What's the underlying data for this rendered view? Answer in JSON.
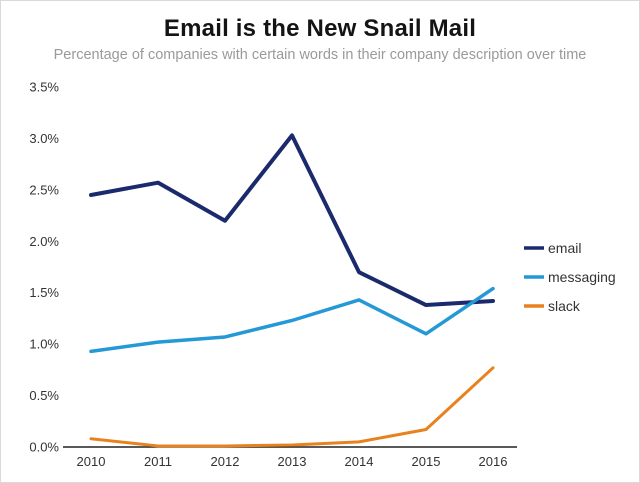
{
  "header": {
    "title": "Email is the New Snail Mail",
    "subtitle": "Percentage of companies with certain words in their company description over time"
  },
  "chart_data": {
    "type": "line",
    "title": "Email is the New Snail Mail",
    "subtitle": "Percentage of companies with certain words in their company description over time",
    "categories": [
      "2010",
      "2011",
      "2012",
      "2013",
      "2014",
      "2015",
      "2016"
    ],
    "series": [
      {
        "name": "email",
        "color": "#1a2a6c",
        "stroke_width": 4,
        "values": [
          2.45,
          2.57,
          2.2,
          3.03,
          1.7,
          1.38,
          1.42
        ]
      },
      {
        "name": "messaging",
        "color": "#2499d6",
        "stroke_width": 3.5,
        "values": [
          0.93,
          1.02,
          1.07,
          1.23,
          1.43,
          1.1,
          1.54
        ]
      },
      {
        "name": "slack",
        "color": "#e8821e",
        "stroke_width": 3,
        "values": [
          0.08,
          0.01,
          0.01,
          0.02,
          0.05,
          0.17,
          0.77
        ]
      }
    ],
    "xlabel": "",
    "ylabel": "",
    "ylim": [
      0,
      3.5
    ],
    "yticks": [
      {
        "v": 0.0,
        "label": "0.0%"
      },
      {
        "v": 0.5,
        "label": "0.5%"
      },
      {
        "v": 1.0,
        "label": "1.0%"
      },
      {
        "v": 1.5,
        "label": "1.5%"
      },
      {
        "v": 2.0,
        "label": "2.0%"
      },
      {
        "v": 2.5,
        "label": "2.5%"
      },
      {
        "v": 3.0,
        "label": "3.0%"
      },
      {
        "v": 3.5,
        "label": "3.5%"
      }
    ],
    "grid": false,
    "legend_position": "right",
    "axis_color": "#222222",
    "tick_label_color": "#333333"
  }
}
